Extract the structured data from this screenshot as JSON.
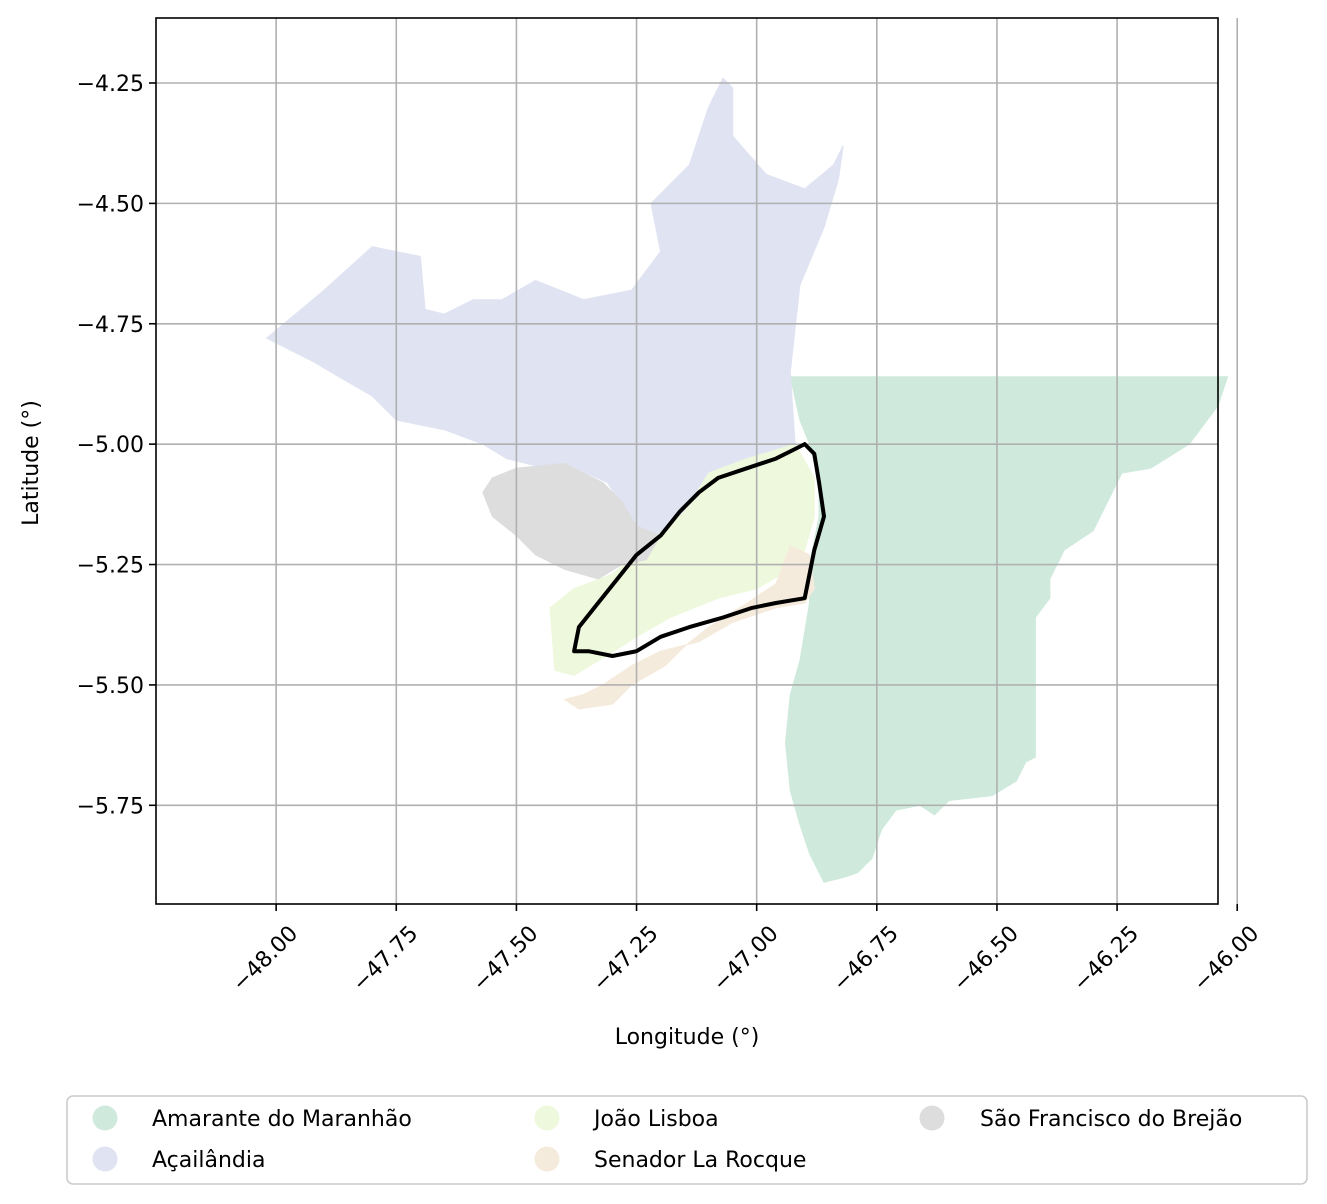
{
  "chart_data": {
    "type": "map",
    "xlabel": "Longitude (°)",
    "ylabel": "Latitude (°)",
    "xlim": [
      -48.25,
      -46.04
    ],
    "ylim": [
      -5.955,
      -4.115
    ],
    "grid": true,
    "xticks": [
      -48.0,
      -47.75,
      -47.5,
      -47.25,
      -47.0,
      -46.75,
      -46.5,
      -46.25,
      -46.0
    ],
    "xtick_labels": [
      "−48.00",
      "−47.75",
      "−47.50",
      "−47.25",
      "−47.00",
      "−46.75",
      "−46.50",
      "−46.25",
      "−46.00"
    ],
    "yticks": [
      -4.25,
      -4.5,
      -4.75,
      -5.0,
      -5.25,
      -5.5,
      -5.75
    ],
    "ytick_labels": [
      "−4.25",
      "−4.50",
      "−4.75",
      "−5.00",
      "−5.25",
      "−5.50",
      "−5.75"
    ],
    "legend_position": "bottom",
    "regions": [
      {
        "name": "Amarante do Maranhão",
        "color": "#cfeadd",
        "polygon": [
          [
            -46.93,
            -4.86
          ],
          [
            -46.02,
            -4.86
          ],
          [
            -46.04,
            -4.92
          ],
          [
            -46.1,
            -5.0
          ],
          [
            -46.18,
            -5.05
          ],
          [
            -46.24,
            -5.06
          ],
          [
            -46.27,
            -5.12
          ],
          [
            -46.3,
            -5.18
          ],
          [
            -46.36,
            -5.22
          ],
          [
            -46.39,
            -5.28
          ],
          [
            -46.39,
            -5.32
          ],
          [
            -46.42,
            -5.36
          ],
          [
            -46.42,
            -5.65
          ],
          [
            -46.44,
            -5.66
          ],
          [
            -46.46,
            -5.7
          ],
          [
            -46.51,
            -5.73
          ],
          [
            -46.6,
            -5.74
          ],
          [
            -46.63,
            -5.77
          ],
          [
            -46.66,
            -5.75
          ],
          [
            -46.71,
            -5.76
          ],
          [
            -46.74,
            -5.8
          ],
          [
            -46.76,
            -5.86
          ],
          [
            -46.79,
            -5.89
          ],
          [
            -46.82,
            -5.9
          ],
          [
            -46.86,
            -5.91
          ],
          [
            -46.89,
            -5.85
          ],
          [
            -46.91,
            -5.79
          ],
          [
            -46.93,
            -5.72
          ],
          [
            -46.94,
            -5.62
          ],
          [
            -46.93,
            -5.52
          ],
          [
            -46.91,
            -5.45
          ],
          [
            -46.89,
            -5.33
          ],
          [
            -46.89,
            -5.25
          ],
          [
            -46.87,
            -5.15
          ],
          [
            -46.87,
            -5.08
          ],
          [
            -46.89,
            -5.0
          ],
          [
            -46.91,
            -4.95
          ]
        ]
      },
      {
        "name": "Açailândia",
        "color": "#dfe3f2",
        "polygon": [
          [
            -48.02,
            -4.78
          ],
          [
            -47.9,
            -4.68
          ],
          [
            -47.8,
            -4.59
          ],
          [
            -47.7,
            -4.61
          ],
          [
            -47.69,
            -4.72
          ],
          [
            -47.65,
            -4.73
          ],
          [
            -47.59,
            -4.7
          ],
          [
            -47.53,
            -4.7
          ],
          [
            -47.46,
            -4.66
          ],
          [
            -47.36,
            -4.7
          ],
          [
            -47.26,
            -4.68
          ],
          [
            -47.2,
            -4.6
          ],
          [
            -47.22,
            -4.5
          ],
          [
            -47.14,
            -4.42
          ],
          [
            -47.1,
            -4.3
          ],
          [
            -47.07,
            -4.24
          ],
          [
            -47.05,
            -4.26
          ],
          [
            -47.05,
            -4.36
          ],
          [
            -46.98,
            -4.44
          ],
          [
            -46.9,
            -4.47
          ],
          [
            -46.84,
            -4.42
          ],
          [
            -46.82,
            -4.38
          ],
          [
            -46.83,
            -4.45
          ],
          [
            -46.86,
            -4.55
          ],
          [
            -46.91,
            -4.67
          ],
          [
            -46.93,
            -4.85
          ],
          [
            -46.92,
            -5.0
          ],
          [
            -46.94,
            -5.01
          ],
          [
            -47.05,
            -5.06
          ],
          [
            -47.09,
            -5.15
          ],
          [
            -47.2,
            -5.2
          ],
          [
            -47.26,
            -5.16
          ],
          [
            -47.31,
            -5.08
          ],
          [
            -47.4,
            -5.04
          ],
          [
            -47.44,
            -5.05
          ],
          [
            -47.52,
            -5.03
          ],
          [
            -47.57,
            -5.0
          ],
          [
            -47.65,
            -4.97
          ],
          [
            -47.75,
            -4.95
          ],
          [
            -47.8,
            -4.9
          ],
          [
            -47.87,
            -4.86
          ],
          [
            -47.92,
            -4.83
          ]
        ]
      },
      {
        "name": "João Lisboa",
        "color": "#eef8dc",
        "polygon": [
          [
            -46.92,
            -5.0
          ],
          [
            -46.88,
            -5.07
          ],
          [
            -46.88,
            -5.15
          ],
          [
            -46.9,
            -5.22
          ],
          [
            -46.93,
            -5.26
          ],
          [
            -47.0,
            -5.3
          ],
          [
            -47.08,
            -5.32
          ],
          [
            -47.18,
            -5.36
          ],
          [
            -47.25,
            -5.4
          ],
          [
            -47.33,
            -5.45
          ],
          [
            -47.38,
            -5.48
          ],
          [
            -47.42,
            -5.47
          ],
          [
            -47.43,
            -5.34
          ],
          [
            -47.38,
            -5.3
          ],
          [
            -47.3,
            -5.27
          ],
          [
            -47.22,
            -5.2
          ],
          [
            -47.15,
            -5.14
          ],
          [
            -47.1,
            -5.06
          ],
          [
            -47.02,
            -5.03
          ]
        ]
      },
      {
        "name": "Senador La Rocque",
        "color": "#f5ebdc",
        "polygon": [
          [
            -46.93,
            -5.21
          ],
          [
            -46.89,
            -5.23
          ],
          [
            -46.88,
            -5.3
          ],
          [
            -46.9,
            -5.33
          ],
          [
            -46.96,
            -5.34
          ],
          [
            -47.05,
            -5.37
          ],
          [
            -47.12,
            -5.41
          ],
          [
            -47.2,
            -5.43
          ],
          [
            -47.26,
            -5.46
          ],
          [
            -47.32,
            -5.5
          ],
          [
            -47.36,
            -5.52
          ],
          [
            -47.4,
            -5.53
          ],
          [
            -47.37,
            -5.55
          ],
          [
            -47.3,
            -5.54
          ],
          [
            -47.26,
            -5.5
          ],
          [
            -47.19,
            -5.46
          ],
          [
            -47.15,
            -5.42
          ],
          [
            -47.1,
            -5.38
          ],
          [
            -47.02,
            -5.33
          ],
          [
            -46.96,
            -5.29
          ]
        ]
      },
      {
        "name": "São Francisco do Brejão",
        "color": "#dddddd",
        "polygon": [
          [
            -47.55,
            -5.07
          ],
          [
            -47.5,
            -5.05
          ],
          [
            -47.4,
            -5.04
          ],
          [
            -47.32,
            -5.08
          ],
          [
            -47.28,
            -5.12
          ],
          [
            -47.25,
            -5.17
          ],
          [
            -47.2,
            -5.19
          ],
          [
            -47.23,
            -5.24
          ],
          [
            -47.28,
            -5.25
          ],
          [
            -47.33,
            -5.28
          ],
          [
            -47.4,
            -5.26
          ],
          [
            -47.46,
            -5.23
          ],
          [
            -47.5,
            -5.19
          ],
          [
            -47.55,
            -5.15
          ],
          [
            -47.57,
            -5.1
          ]
        ]
      }
    ],
    "highlight_outline": {
      "color": "#000000",
      "polygon": [
        [
          -46.9,
          -5.0
        ],
        [
          -46.88,
          -5.02
        ],
        [
          -46.87,
          -5.08
        ],
        [
          -46.86,
          -5.15
        ],
        [
          -46.88,
          -5.22
        ],
        [
          -46.89,
          -5.27
        ],
        [
          -46.9,
          -5.32
        ],
        [
          -46.96,
          -5.33
        ],
        [
          -47.01,
          -5.34
        ],
        [
          -47.07,
          -5.36
        ],
        [
          -47.14,
          -5.38
        ],
        [
          -47.2,
          -5.4
        ],
        [
          -47.25,
          -5.43
        ],
        [
          -47.3,
          -5.44
        ],
        [
          -47.35,
          -5.43
        ],
        [
          -47.38,
          -5.43
        ],
        [
          -47.37,
          -5.38
        ],
        [
          -47.33,
          -5.33
        ],
        [
          -47.29,
          -5.28
        ],
        [
          -47.25,
          -5.23
        ],
        [
          -47.2,
          -5.19
        ],
        [
          -47.16,
          -5.14
        ],
        [
          -47.12,
          -5.1
        ],
        [
          -47.08,
          -5.07
        ],
        [
          -47.02,
          -5.05
        ],
        [
          -46.96,
          -5.03
        ],
        [
          -46.92,
          -5.01
        ]
      ]
    },
    "legend": [
      {
        "label": "Amarante do Maranhão",
        "color": "#cfeadd"
      },
      {
        "label": "Açailândia",
        "color": "#dfe3f2"
      },
      {
        "label": "João Lisboa",
        "color": "#eef8dc"
      },
      {
        "label": "Senador La Rocque",
        "color": "#f5ebdc"
      },
      {
        "label": "São Francisco do Brejão",
        "color": "#dddddd"
      }
    ]
  }
}
